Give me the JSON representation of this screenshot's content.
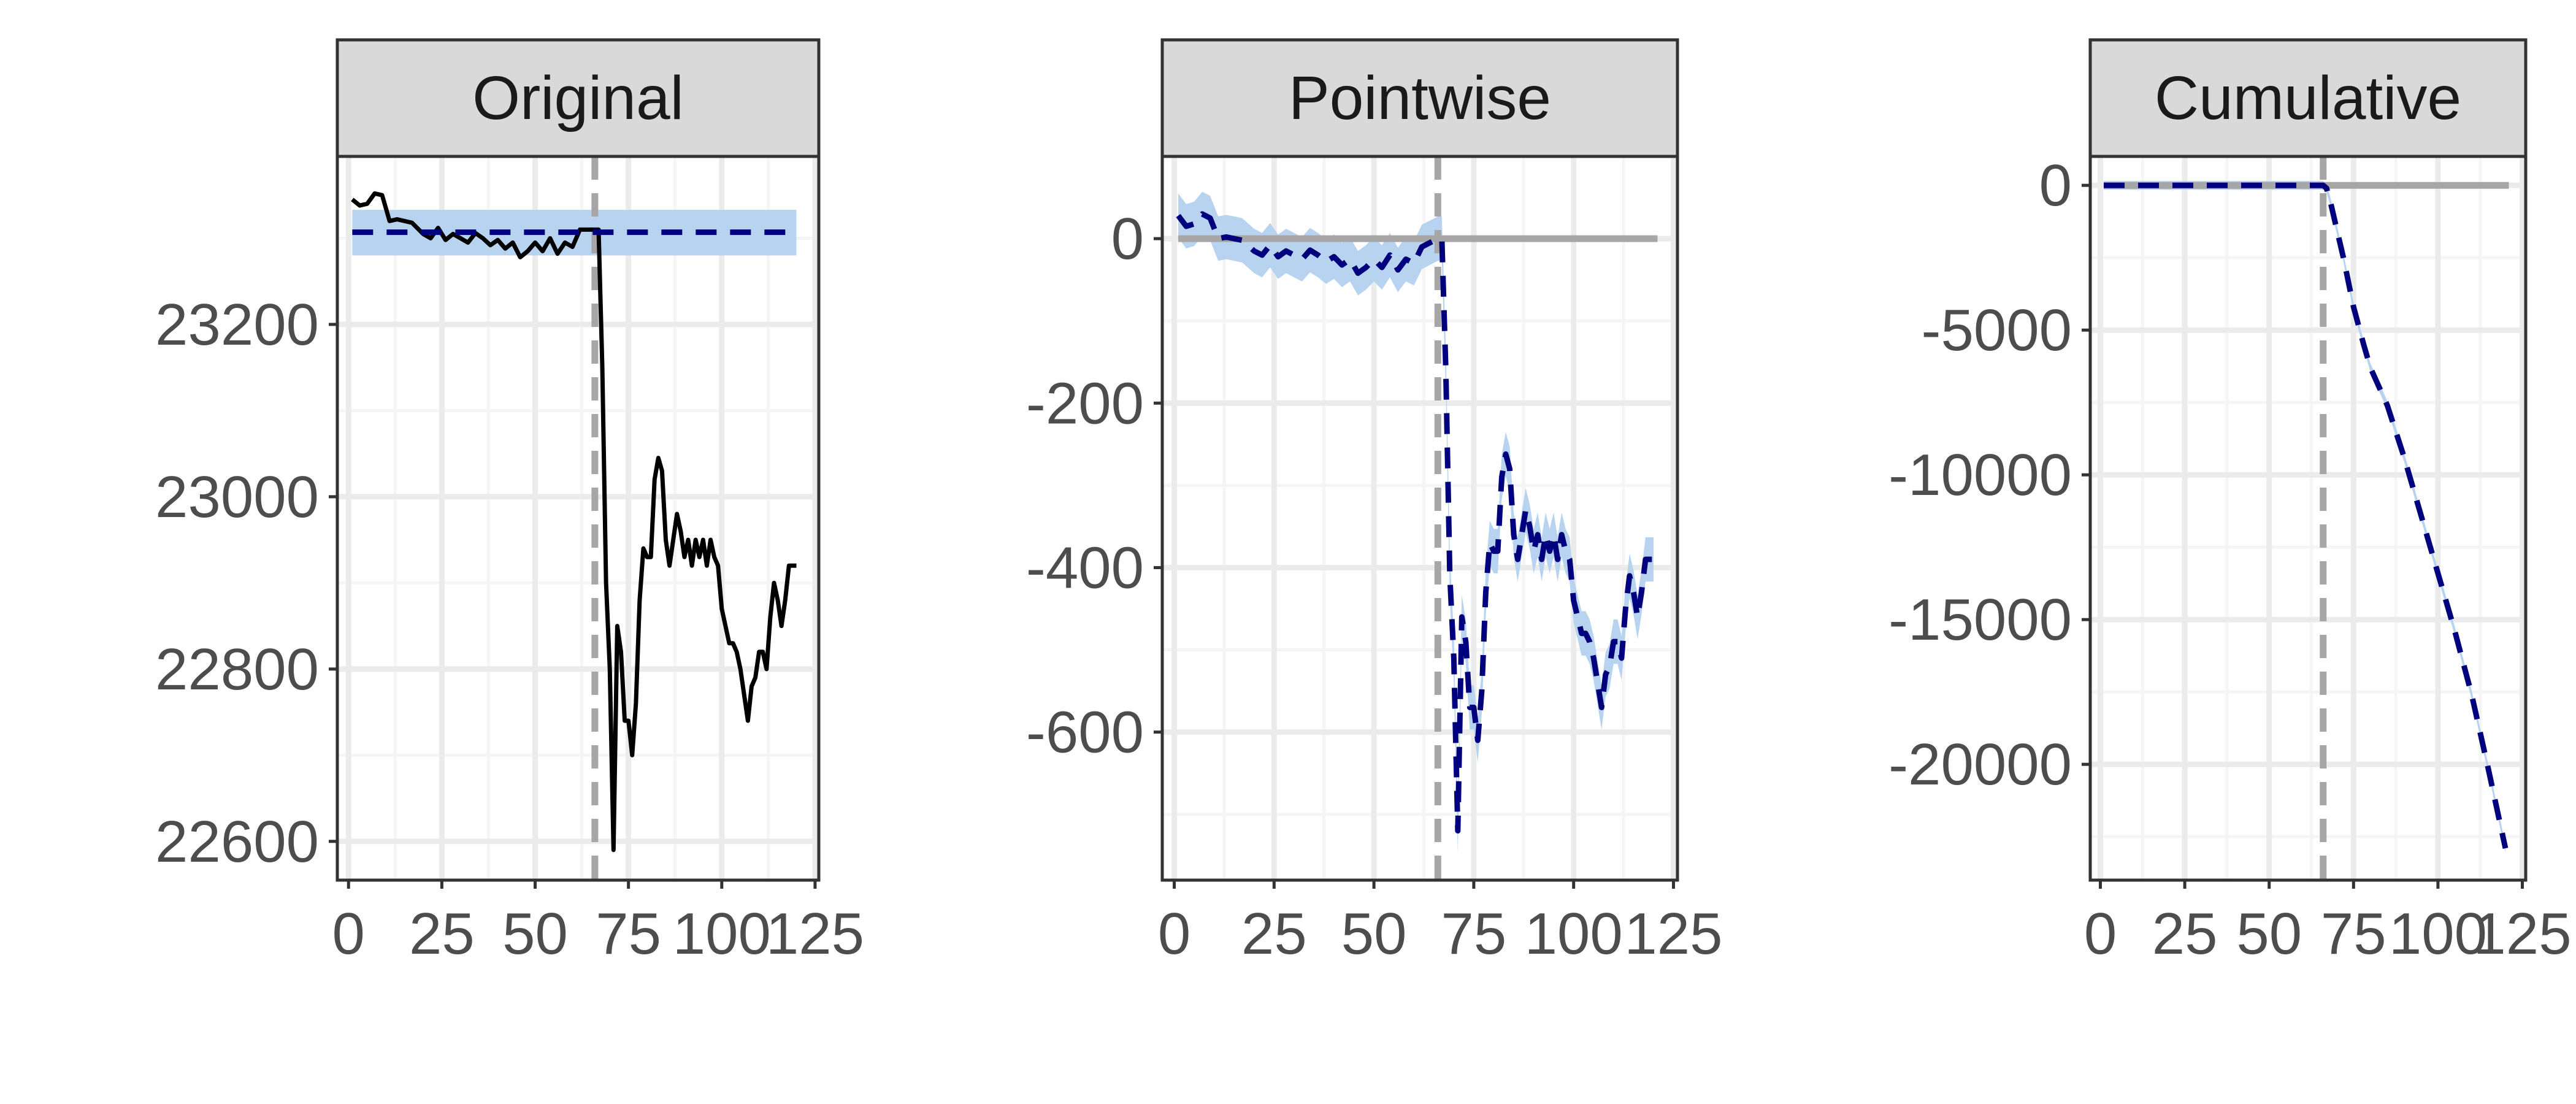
{
  "figure": {
    "background": "#ffffff",
    "panel_background": "#ffffff",
    "strip_fill": "#d9d9d9",
    "grid_major": "#ebebeb",
    "grid_minor": "#f5f5f5",
    "border_color": "#333333",
    "intervention_line_color": "#a6a6a6",
    "band_color": "#b7d3f0",
    "series_color_actual": "#000000",
    "series_color_predicted": "#00007f",
    "baseline_color": "#a6a6a6"
  },
  "chart_data": [
    {
      "type": "line",
      "panel": "Original",
      "title": "Original",
      "xlabel": "",
      "ylabel": "",
      "xlim": [
        -3,
        126
      ],
      "ylim": [
        22555,
        23395
      ],
      "x_ticks": [
        0,
        25,
        50,
        75,
        100,
        125
      ],
      "x_tick_labels": [
        "0",
        "25",
        "50",
        "75",
        "100",
        "125"
      ],
      "y_ticks": [
        22600,
        22800,
        23000,
        23200
      ],
      "y_tick_labels": [
        "22600",
        "22800",
        "23000",
        "23200"
      ],
      "grid": true,
      "intervention_x": 66,
      "band": {
        "x": [
          1,
          66,
          120
        ],
        "lower": [
          23280,
          23280,
          23280
        ],
        "upper": [
          23333,
          23333,
          23333
        ]
      },
      "series": [
        {
          "role": "actual",
          "style": "solid",
          "x": [
            1,
            3,
            5,
            7,
            9,
            11,
            13,
            15,
            17,
            20,
            22,
            24,
            26,
            28,
            30,
            32,
            34,
            36,
            38,
            40,
            42,
            44,
            46,
            48,
            50,
            52,
            54,
            56,
            58,
            60,
            62,
            64,
            66,
            67,
            68,
            69,
            70,
            71,
            72,
            73,
            74,
            75,
            76,
            77,
            78,
            79,
            80,
            81,
            82,
            83,
            84,
            85,
            86,
            87,
            88,
            89,
            90,
            91,
            92,
            93,
            94,
            95,
            96,
            97,
            98,
            99,
            100,
            101,
            102,
            103,
            104,
            105,
            106,
            107,
            108,
            109,
            110,
            111,
            112,
            113,
            114,
            115,
            116,
            117,
            118,
            119,
            120
          ],
          "y": [
            23345,
            23338,
            23340,
            23352,
            23350,
            23320,
            23322,
            23320,
            23318,
            23305,
            23300,
            23312,
            23298,
            23305,
            23300,
            23295,
            23306,
            23300,
            23292,
            23298,
            23288,
            23295,
            23278,
            23285,
            23295,
            23285,
            23300,
            23282,
            23295,
            23290,
            23310,
            23310,
            23310,
            23310,
            23150,
            22900,
            22800,
            22590,
            22850,
            22820,
            22740,
            22740,
            22700,
            22760,
            22880,
            22940,
            22930,
            22930,
            23020,
            23045,
            23030,
            22950,
            22920,
            22950,
            22980,
            22960,
            22930,
            22950,
            22920,
            22950,
            22930,
            22950,
            22920,
            22950,
            22930,
            22920,
            22870,
            22850,
            22830,
            22830,
            22820,
            22800,
            22770,
            22740,
            22780,
            22790,
            22820,
            22820,
            22800,
            22860,
            22900,
            22880,
            22850,
            22880,
            22920,
            22920,
            22920
          ]
        },
        {
          "role": "predicted",
          "style": "dashed",
          "x": [
            1,
            120
          ],
          "y": [
            23307,
            23307
          ]
        }
      ]
    },
    {
      "type": "line",
      "panel": "Pointwise",
      "title": "Pointwise",
      "xlabel": "",
      "ylabel": "",
      "xlim": [
        -3,
        126
      ],
      "ylim": [
        -780,
        100
      ],
      "x_ticks": [
        0,
        25,
        50,
        75,
        100,
        125
      ],
      "x_tick_labels": [
        "0",
        "25",
        "50",
        "75",
        "100",
        "125"
      ],
      "y_ticks": [
        -600,
        -400,
        -200,
        0
      ],
      "y_tick_labels": [
        "-600",
        "-400",
        "-200",
        "0"
      ],
      "grid": true,
      "intervention_x": 66,
      "baseline_y": 0,
      "series": [
        {
          "role": "effect",
          "style": "dashed",
          "band_halfwidth": 27,
          "x": [
            1,
            3,
            5,
            7,
            9,
            11,
            13,
            15,
            17,
            20,
            22,
            24,
            26,
            28,
            30,
            32,
            34,
            36,
            38,
            40,
            42,
            44,
            46,
            48,
            50,
            52,
            54,
            56,
            58,
            60,
            62,
            64,
            66,
            67,
            68,
            69,
            70,
            71,
            72,
            73,
            74,
            75,
            76,
            77,
            78,
            79,
            80,
            81,
            82,
            83,
            84,
            85,
            86,
            87,
            88,
            89,
            90,
            91,
            92,
            93,
            94,
            95,
            96,
            97,
            98,
            99,
            100,
            101,
            102,
            103,
            104,
            105,
            106,
            107,
            108,
            109,
            110,
            111,
            112,
            113,
            114,
            115,
            116,
            117,
            118,
            119,
            120
          ],
          "y": [
            28,
            15,
            18,
            30,
            25,
            0,
            2,
            0,
            -2,
            -15,
            -20,
            -8,
            -22,
            -15,
            -20,
            -25,
            -14,
            -20,
            -28,
            -22,
            -32,
            -25,
            -42,
            -35,
            -25,
            -35,
            -20,
            -38,
            -25,
            -30,
            -10,
            -5,
            0,
            0,
            -160,
            -410,
            -510,
            -720,
            -460,
            -490,
            -570,
            -570,
            -610,
            -550,
            -430,
            -370,
            -380,
            -380,
            -290,
            -262,
            -280,
            -360,
            -390,
            -360,
            -330,
            -350,
            -380,
            -360,
            -390,
            -360,
            -380,
            -360,
            -390,
            -360,
            -380,
            -390,
            -440,
            -460,
            -480,
            -480,
            -490,
            -510,
            -540,
            -570,
            -530,
            -520,
            -490,
            -490,
            -510,
            -450,
            -410,
            -430,
            -460,
            -430,
            -390,
            -390,
            -390
          ]
        }
      ]
    },
    {
      "type": "line",
      "panel": "Cumulative",
      "title": "Cumulative",
      "xlabel": "",
      "ylabel": "",
      "xlim": [
        -3,
        126
      ],
      "ylim": [
        -24000,
        1000
      ],
      "x_ticks": [
        0,
        25,
        50,
        75,
        100,
        125
      ],
      "x_tick_labels": [
        "0",
        "25",
        "50",
        "75",
        "100",
        "125"
      ],
      "y_ticks": [
        -20000,
        -15000,
        -10000,
        -5000,
        0
      ],
      "y_tick_labels": [
        "-20000",
        "-15000",
        "-10000",
        "-5000",
        "0"
      ],
      "grid": true,
      "intervention_x": 66,
      "baseline_y": 0,
      "series": [
        {
          "role": "cumulative",
          "style": "dashed",
          "band_halfwidth": 150,
          "x": [
            1,
            66,
            67,
            68,
            70,
            72,
            75,
            78,
            80,
            85,
            90,
            95,
            100,
            105,
            110,
            115,
            120
          ],
          "y": [
            0,
            0,
            -100,
            -500,
            -1500,
            -2500,
            -4200,
            -5500,
            -6300,
            -7600,
            -9400,
            -11400,
            -13400,
            -15400,
            -17600,
            -20200,
            -22900
          ]
        }
      ]
    }
  ]
}
